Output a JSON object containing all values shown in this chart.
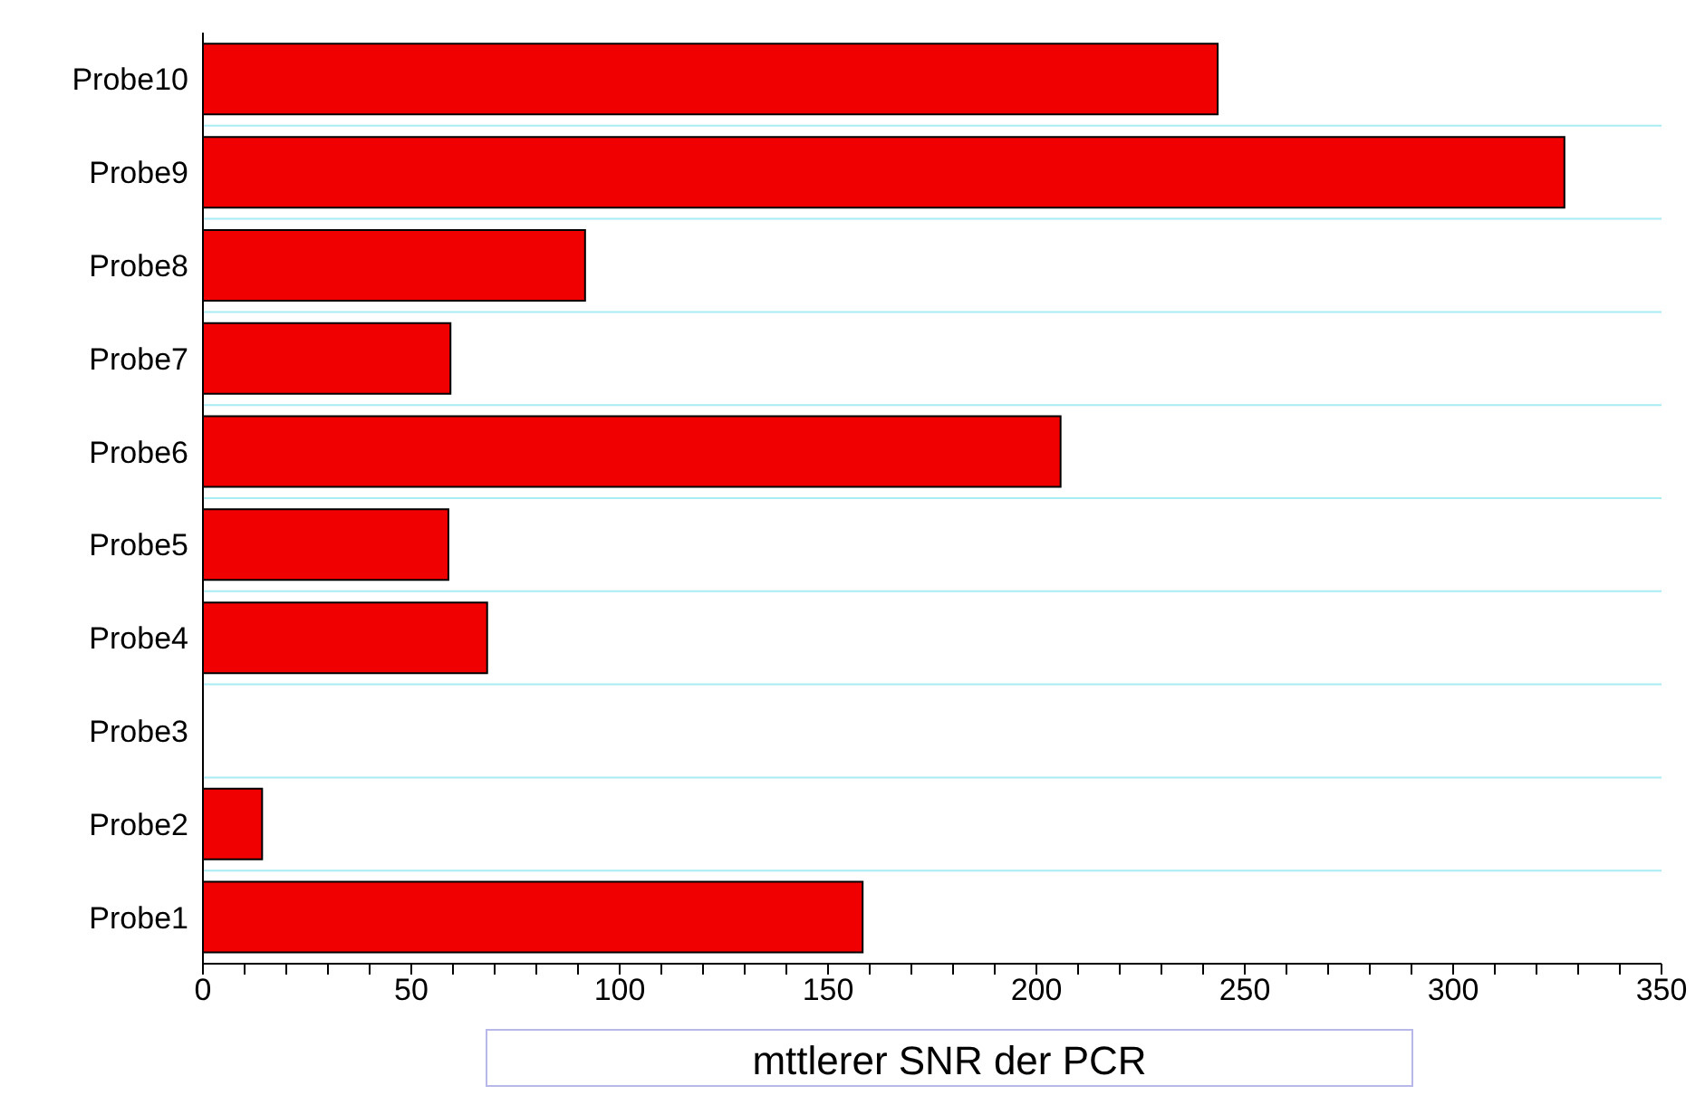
{
  "chart_data": {
    "type": "bar",
    "orientation": "horizontal",
    "xlabel": "mttlerer SNR der PCR",
    "categories": [
      "Probe10",
      "Probe9",
      "Probe8",
      "Probe7",
      "Probe6",
      "Probe5",
      "Probe4",
      "Probe3",
      "Probe2",
      "Probe1"
    ],
    "values": [
      243.5,
      326.7,
      91.7,
      59.4,
      205.8,
      58.9,
      68.2,
      0,
      14.2,
      158.3
    ],
    "color": "#f00000",
    "xlim": [
      0,
      350
    ],
    "xticks": [
      0,
      {
        "value": 10,
        "label": null
      },
      {
        "value": 20,
        "label": null
      },
      {
        "value": 30,
        "label": null
      },
      {
        "value": 40,
        "label": null
      },
      50,
      {
        "value": 60,
        "label": null
      },
      {
        "value": 70,
        "label": null
      },
      {
        "value": 80,
        "label": null
      },
      {
        "value": 90,
        "label": null
      },
      100,
      {
        "value": 110,
        "label": null
      },
      {
        "value": 120,
        "label": null
      },
      {
        "value": 130,
        "label": null
      },
      {
        "value": 140,
        "label": null
      },
      150,
      {
        "value": 160,
        "label": null
      },
      {
        "value": 170,
        "label": null
      },
      {
        "value": 180,
        "label": null
      },
      {
        "value": 190,
        "label": null
      },
      200,
      {
        "value": 210,
        "label": null
      },
      {
        "value": 220,
        "label": null
      },
      {
        "value": 230,
        "label": null
      },
      {
        "value": 240,
        "label": null
      },
      250,
      {
        "value": 260,
        "label": null
      },
      {
        "value": 270,
        "label": null
      },
      {
        "value": 280,
        "label": null
      },
      {
        "value": 290,
        "label": null
      },
      300,
      {
        "value": 310,
        "label": null
      },
      {
        "value": 320,
        "label": null
      },
      {
        "value": 330,
        "label": null
      },
      {
        "value": 340,
        "label": null
      },
      350
    ],
    "grid": "y"
  }
}
